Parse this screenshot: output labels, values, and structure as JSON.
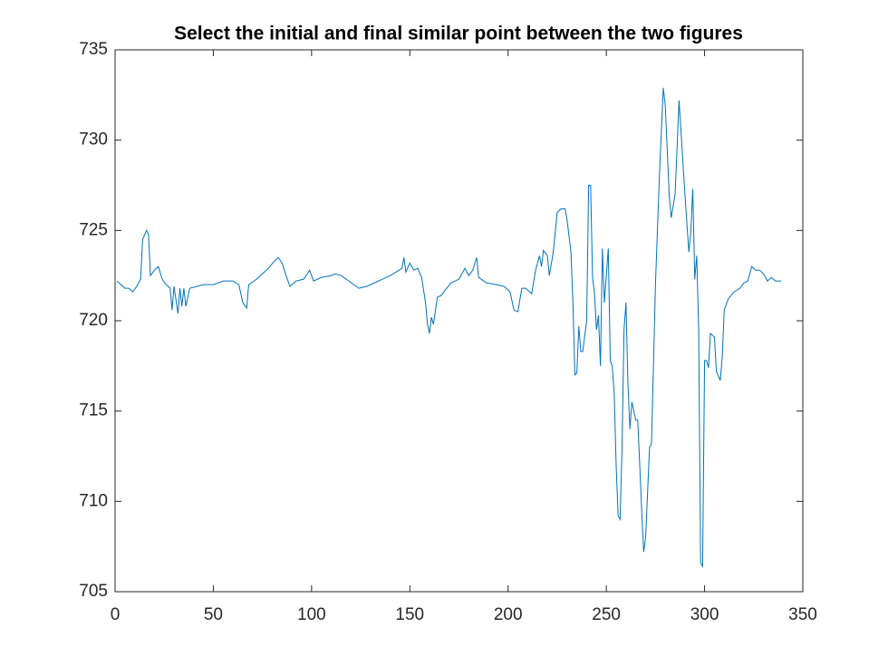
{
  "chart_data": {
    "type": "line",
    "title": "Select the initial and final similar point between the two figures",
    "xlim": [
      0,
      350
    ],
    "ylim": [
      705,
      735
    ],
    "xticks": [
      0,
      50,
      100,
      150,
      200,
      250,
      300,
      350
    ],
    "yticks": [
      705,
      710,
      715,
      720,
      725,
      730,
      735
    ],
    "series": [
      {
        "color": "#0072BD",
        "x": [
          1,
          3,
          5,
          7,
          9,
          11,
          13,
          14,
          16,
          17,
          18,
          20,
          22,
          24,
          26,
          28,
          29,
          30,
          32,
          33,
          34,
          35,
          36,
          38,
          45,
          50,
          55,
          60,
          63,
          65,
          67,
          68,
          72,
          75,
          78,
          81,
          83,
          85,
          87,
          89,
          92,
          96,
          99,
          101,
          105,
          110,
          112,
          115,
          119,
          124,
          128,
          132,
          136,
          140,
          143,
          146,
          147,
          148,
          150,
          152,
          154,
          156,
          158,
          159,
          160,
          161,
          162,
          164,
          166,
          168,
          171,
          175,
          178,
          180,
          182,
          184,
          185,
          189,
          194,
          198,
          201,
          203,
          205,
          207,
          209,
          212,
          214,
          216,
          217,
          218,
          220,
          221,
          223,
          225,
          227,
          229,
          230,
          232,
          233,
          234,
          235,
          236,
          237,
          238,
          240,
          241,
          242,
          243,
          244,
          245,
          246,
          247,
          248,
          249,
          250,
          251,
          252,
          253,
          254,
          255,
          256,
          257,
          258,
          259,
          260,
          261,
          262,
          263,
          265,
          266,
          267,
          268,
          269,
          270,
          272,
          273,
          275,
          277,
          279,
          280,
          282,
          283,
          285,
          287,
          288,
          290,
          292,
          293,
          294,
          295,
          296,
          297,
          298,
          299,
          300,
          301,
          302,
          303,
          305,
          306,
          308,
          309,
          310,
          312,
          315,
          318,
          320,
          322,
          324,
          326,
          328,
          330,
          332,
          334,
          336,
          339
        ],
        "values": [
          722.2,
          722.0,
          721.8,
          721.8,
          721.6,
          721.9,
          722.3,
          724.5,
          725.0,
          724.8,
          722.5,
          722.8,
          723.0,
          722.3,
          722.0,
          721.8,
          720.6,
          721.9,
          720.4,
          721.8,
          720.8,
          721.8,
          720.8,
          721.8,
          722.0,
          722.0,
          722.2,
          722.2,
          722.0,
          721.0,
          720.7,
          722.0,
          722.3,
          722.6,
          722.9,
          723.3,
          723.5,
          723.2,
          722.5,
          721.9,
          722.2,
          722.3,
          722.8,
          722.2,
          722.4,
          722.5,
          722.6,
          722.5,
          722.2,
          721.8,
          721.9,
          722.1,
          722.3,
          722.5,
          722.7,
          722.9,
          723.5,
          722.7,
          723.2,
          722.8,
          722.9,
          722.4,
          721.0,
          719.8,
          719.3,
          720.2,
          719.8,
          721.3,
          721.4,
          721.7,
          722.1,
          722.3,
          722.9,
          722.5,
          722.8,
          723.5,
          722.4,
          722.1,
          722.0,
          721.9,
          721.6,
          720.6,
          720.5,
          721.8,
          721.8,
          721.5,
          722.8,
          723.6,
          723.0,
          723.9,
          723.6,
          722.5,
          723.8,
          726.0,
          726.2,
          726.2,
          725.6,
          723.8,
          721.0,
          717.0,
          717.1,
          719.7,
          718.3,
          718.3,
          720.0,
          727.5,
          727.5,
          722.4,
          721.5,
          719.5,
          720.3,
          717.5,
          724.0,
          721.0,
          722.5,
          724.0,
          717.8,
          717.5,
          716.0,
          712.0,
          709.2,
          709.0,
          713.0,
          719.5,
          721.0,
          716.5,
          714.0,
          715.5,
          714.5,
          714.5,
          712.0,
          709.5,
          707.2,
          708.0,
          713.0,
          713.2,
          722.0,
          728.0,
          732.9,
          731.9,
          727.0,
          725.7,
          727.0,
          732.2,
          730.5,
          727.0,
          723.8,
          724.9,
          727.3,
          722.3,
          723.6,
          719.5,
          706.6,
          706.4,
          717.8,
          717.8,
          717.4,
          719.3,
          719.1,
          717.2,
          716.7,
          718.0,
          720.6,
          721.2,
          721.6,
          721.8,
          722.1,
          722.2,
          723.0,
          722.8,
          722.8,
          722.6,
          722.2,
          722.4,
          722.2,
          722.2
        ]
      }
    ]
  }
}
